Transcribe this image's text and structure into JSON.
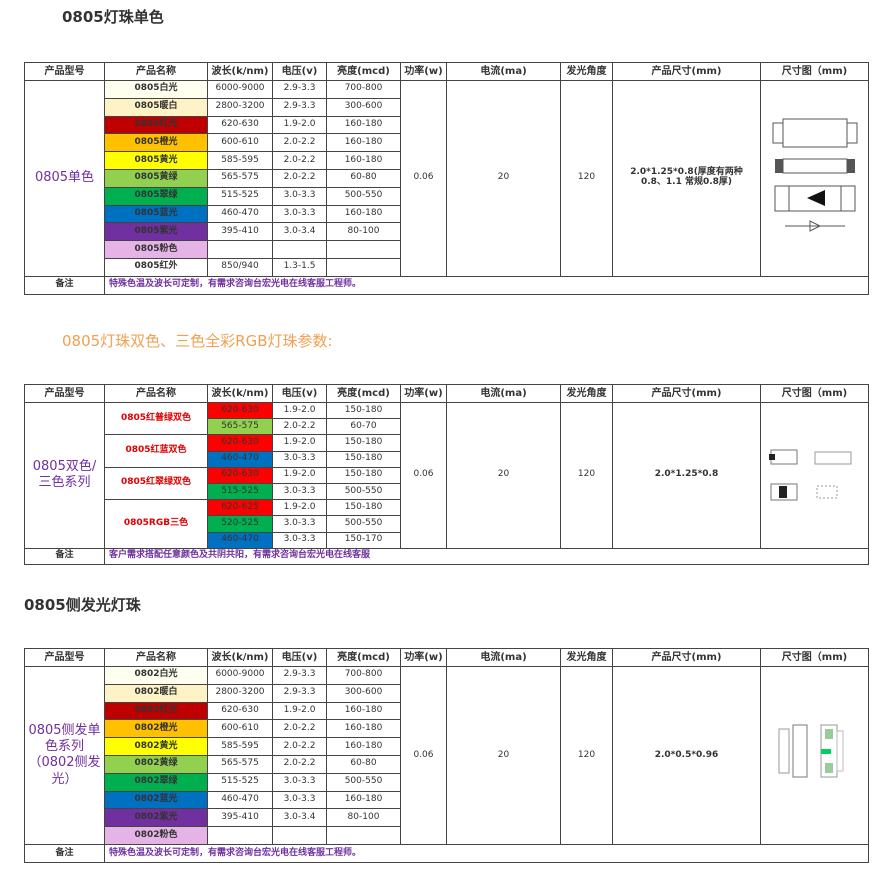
{
  "sections": [
    {
      "heading": "0805灯珠单色",
      "table": {
        "headers": [
          "产品型号",
          "产品名称",
          "波长(k/nm)",
          "电压(v)",
          "亮度(mcd)",
          "功率(w)",
          "电流(ma)",
          "发光角度",
          "产品尺寸(mm)",
          "尺寸图（mm)"
        ],
        "series": "0805单色",
        "power": 0.06,
        "current": 20,
        "angle": 120,
        "size": "2.0*1.25*0.8(厚度有两种0.8、1.1 常规0.8厚)",
        "rows": [
          {
            "name": "0805白光",
            "color": "#fffff0",
            "wavelength": "6000-9000",
            "voltage": "2.9-3.3",
            "brightness": "700-800"
          },
          {
            "name": "0805暖白",
            "color": "#fdf3c6",
            "wavelength": "2800-3200",
            "voltage": "2.9-3.3",
            "brightness": "300-600"
          },
          {
            "name": "0805红光",
            "color": "#c00000",
            "wavelength": "620-630",
            "voltage": "1.9-2.0",
            "brightness": "160-180"
          },
          {
            "name": "0805橙光",
            "color": "#ffc000",
            "wavelength": "600-610",
            "voltage": "2.0-2.2",
            "brightness": "160-180"
          },
          {
            "name": "0805黄光",
            "color": "#ffff00",
            "wavelength": "585-595",
            "voltage": "2.0-2.2",
            "brightness": "160-180"
          },
          {
            "name": "0805黄绿",
            "color": "#92d050",
            "wavelength": "565-575",
            "voltage": "2.0-2.2",
            "brightness": "60-80"
          },
          {
            "name": "0805翠绿",
            "color": "#00b050",
            "wavelength": "515-525",
            "voltage": "3.0-3.3",
            "brightness": "500-550"
          },
          {
            "name": "0805蓝光",
            "color": "#0070c0",
            "wavelength": "460-470",
            "voltage": "3.0-3.3",
            "brightness": "160-180"
          },
          {
            "name": "0805紫光",
            "color": "#7030a0",
            "wavelength": "395-410",
            "voltage": "3.0-3.4",
            "brightness": "80-100"
          },
          {
            "name": "0805粉色",
            "color": "#e6b3e6"
          },
          {
            "name": "0805红外",
            "wavelength": "850/940",
            "voltage": "1.3-1.5"
          }
        ],
        "note_label": "备注",
        "note": "特殊色温及波长可定制，有需求咨询台宏光电在线客服工程师。"
      }
    },
    {
      "heading": "0805灯珠双色、三色全彩RGB灯珠参数:",
      "table": {
        "headers": [
          "产品型号",
          "产品名称",
          "波长(k/nm)",
          "电压(v)",
          "亮度(mcd)",
          "功率(w)",
          "电流(ma)",
          "发光角度",
          "产品尺寸(mm)",
          "尺寸图（mm)"
        ],
        "series": "0805双色/三色系列",
        "power": 0.06,
        "current": 20,
        "angle": 120,
        "size": "2.0*1.25*0.8",
        "rows": [
          {
            "name": "0805红普绿双色",
            "rows": [
              {
                "color": "#ff0000",
                "wavelength": "620-630",
                "voltage": "1.9-2.0",
                "brightness": "150-180"
              },
              {
                "color": "#92d050",
                "wavelength": "565-575",
                "voltage": "2.0-2.2",
                "brightness": "60-70"
              }
            ]
          },
          {
            "name": "0805红蓝双色",
            "rows": [
              {
                "color": "#ff0000",
                "wavelength": "620-630",
                "voltage": "1.9-2.0",
                "brightness": "150-180"
              },
              {
                "color": "#0070c0",
                "wavelength": "460-470",
                "voltage": "3.0-3.3",
                "brightness": "150-180"
              }
            ]
          },
          {
            "name": "0805红翠绿双色",
            "rows": [
              {
                "color": "#ff0000",
                "wavelength": "620-630",
                "voltage": "1.9-2.0",
                "brightness": "150-180"
              },
              {
                "color": "#00b050",
                "wavelength": "515-525",
                "voltage": "3.0-3.3",
                "brightness": "500-550"
              }
            ]
          },
          {
            "name": "0805RGB三色",
            "rows": [
              {
                "color": "#ff0000",
                "wavelength": "620-625",
                "voltage": "1.9-2.0",
                "brightness": "150-180"
              },
              {
                "color": "#00b050",
                "wavelength": "520-525",
                "voltage": "3.0-3.3",
                "brightness": "500-550"
              },
              {
                "color": "#0070c0",
                "wavelength": "460-470",
                "voltage": "3.0-3.3",
                "brightness": "150-170"
              }
            ]
          }
        ],
        "note_label": "备注",
        "note": "客户需求搭配任意颜色及共阴共阳，有需求咨询台宏光电在线客服"
      }
    },
    {
      "heading": "0805侧发光灯珠",
      "table": {
        "headers": [
          "产品型号",
          "产品名称",
          "波长(k/nm)",
          "电压(v)",
          "亮度(mcd)",
          "功率(w)",
          "电流(ma)",
          "发光角度",
          "产品尺寸(mm)",
          "尺寸图（mm)"
        ],
        "series": "0805侧发单色系列（0802侧发光）",
        "power": 0.06,
        "current": 20,
        "angle": 120,
        "size": "2.0*0.5*0.96",
        "rows": [
          {
            "name": "0802白光",
            "color": "#fffff0",
            "wavelength": "6000-9000",
            "voltage": "2.9-3.3",
            "brightness": "700-800"
          },
          {
            "name": "0802暖白",
            "color": "#fdf3c6",
            "wavelength": "2800-3200",
            "voltage": "2.9-3.3",
            "brightness": "300-600"
          },
          {
            "name": "0802红光",
            "color": "#c00000",
            "wavelength": "620-630",
            "voltage": "1.9-2.0",
            "brightness": "160-180"
          },
          {
            "name": "0802橙光",
            "color": "#ffc000",
            "wavelength": "600-610",
            "voltage": "2.0-2.2",
            "brightness": "160-180"
          },
          {
            "name": "0802黄光",
            "color": "#ffff00",
            "wavelength": "585-595",
            "voltage": "2.0-2.2",
            "brightness": "160-180"
          },
          {
            "name": "0802黄绿",
            "color": "#92d050",
            "wavelength": "565-575",
            "voltage": "2.0-2.2",
            "brightness": "60-80"
          },
          {
            "name": "0802翠绿",
            "color": "#00b050",
            "wavelength": "515-525",
            "voltage": "3.0-3.3",
            "brightness": "500-550"
          },
          {
            "name": "0802蓝光",
            "color": "#0070c0",
            "wavelength": "460-470",
            "voltage": "3.0-3.3",
            "brightness": "160-180"
          },
          {
            "name": "0802紫光",
            "color": "#7030a0",
            "wavelength": "395-410",
            "voltage": "3.0-3.4",
            "brightness": "80-100"
          },
          {
            "name": "0802粉色",
            "color": "#e6b3e6"
          }
        ],
        "note_label": "备注",
        "note": "特殊色温及波长可定制，有需求咨询台宏光电在线客服工程师。"
      }
    }
  ]
}
